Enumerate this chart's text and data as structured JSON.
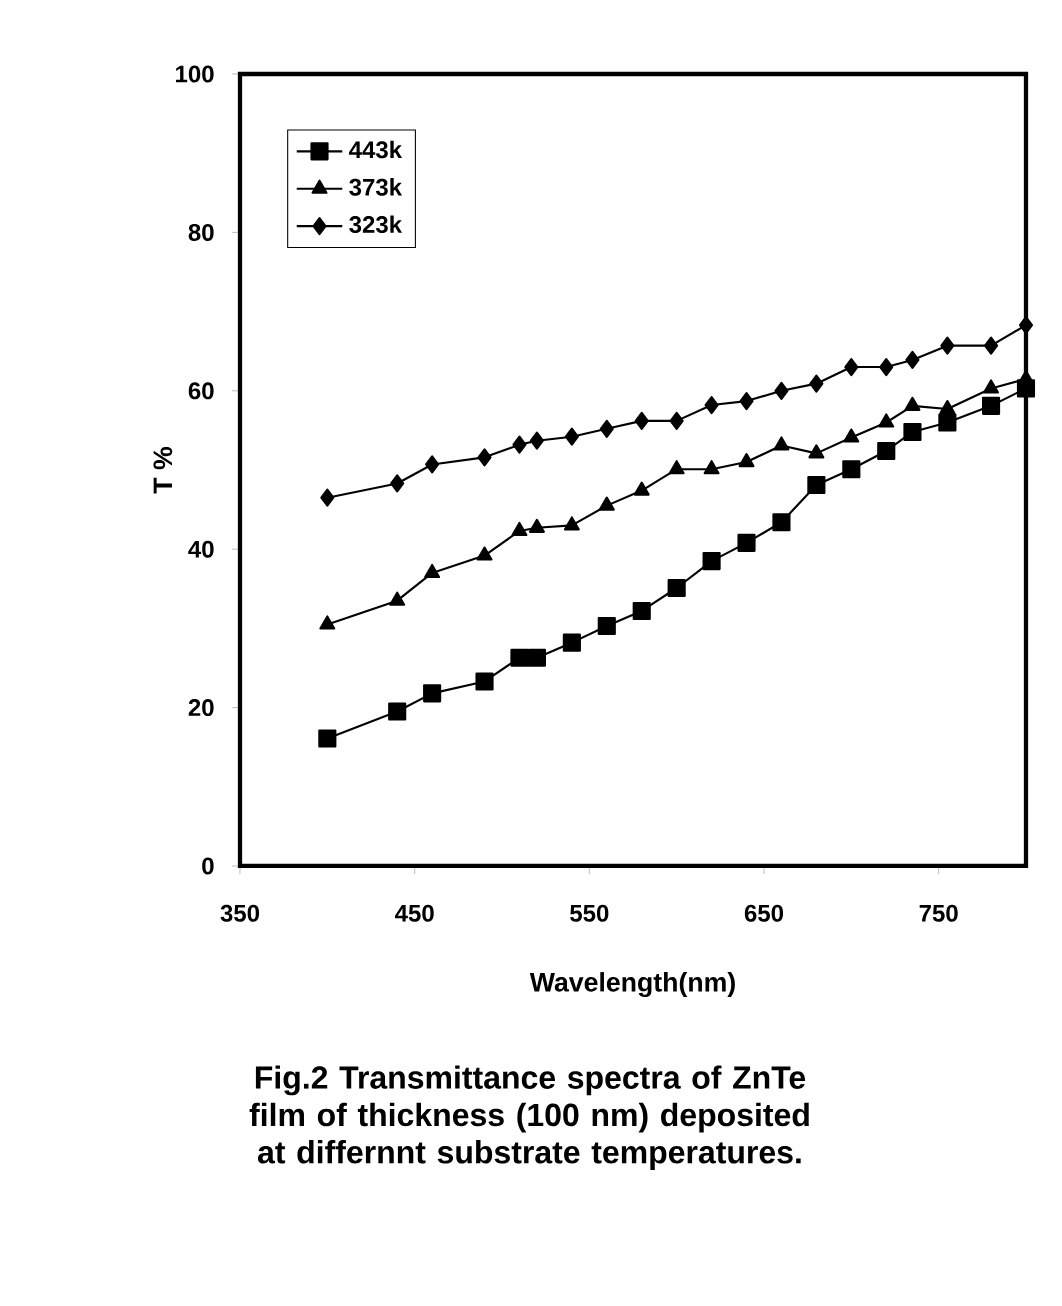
{
  "chart_data": {
    "type": "line",
    "xlabel": "Wavelength(nm)",
    "ylabel": "T %",
    "annotations": [
      "Fig.2  Transmittance spectra of ZnTe film of thickness (100 nm) deposited at differnnt substrate temperatures."
    ],
    "x": [
      400,
      440,
      460,
      490,
      510,
      520,
      540,
      560,
      580,
      600,
      620,
      640,
      660,
      680,
      700,
      720,
      735,
      755,
      780,
      800
    ],
    "series": [
      {
        "name": "443k",
        "color": "#000000",
        "marker": "square",
        "values": [
          16.1,
          19.5,
          21.8,
          23.3,
          26.3,
          26.3,
          28.2,
          30.3,
          32.2,
          35.1,
          38.5,
          40.8,
          43.4,
          48.1,
          50.1,
          52.4,
          54.8,
          56,
          58.1,
          60.3
        ]
      },
      {
        "name": "373k",
        "color": "#000000",
        "marker": "triangle",
        "values": [
          30.5,
          33.5,
          37,
          39.2,
          42.3,
          42.7,
          43,
          45.5,
          47.4,
          50.1,
          50.1,
          51,
          53.1,
          52.1,
          54.1,
          56,
          58.1,
          57.7,
          60.3,
          61.5
        ]
      },
      {
        "name": "323k",
        "color": "#000000",
        "marker": "diamond",
        "values": [
          46.5,
          48.3,
          50.7,
          51.6,
          53.2,
          53.7,
          54.2,
          55.2,
          56.2,
          56.2,
          58.2,
          58.7,
          60,
          60.9,
          63,
          63,
          63.9,
          65.7,
          65.7,
          68.3
        ]
      }
    ],
    "xlim": [
      350,
      800
    ],
    "xticks": [
      350,
      450,
      550,
      650,
      750
    ],
    "ylim": [
      0,
      100
    ],
    "yticks": [
      0,
      20,
      40,
      60,
      80,
      100
    ],
    "grid": false,
    "legend": "top left",
    "line_style": "solid"
  }
}
